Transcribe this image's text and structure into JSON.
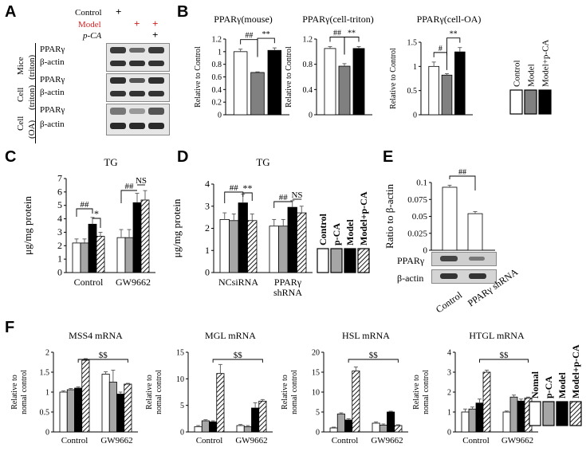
{
  "panel_labels": {
    "A": "A",
    "B": "B",
    "C": "C",
    "D": "D",
    "E": "E",
    "F": "F"
  },
  "panelA": {
    "conditions": [
      "Control",
      "Model",
      "p-CA"
    ],
    "plus_marks": {
      "control": [
        "+"
      ],
      "model": [
        "+",
        "+"
      ],
      "pca": [
        "+"
      ]
    },
    "groups": [
      {
        "group_l1": "Mice",
        "group_l2": "(triton)",
        "rows": [
          "PPARγ",
          "β-actin"
        ]
      },
      {
        "group_l1": "Cell",
        "group_l2": "(triton)",
        "rows": [
          "PPARγ",
          "β-actin"
        ]
      },
      {
        "group_l1": "Cell",
        "group_l2": "(OA)",
        "rows": [
          "PPARγ",
          "β-actin"
        ]
      }
    ]
  },
  "panelB_legend": [
    "Control",
    "Model",
    "Model+p-CA"
  ],
  "panelD_legend": [
    "Control",
    "p-CA",
    "Model",
    "Model+p-CA"
  ],
  "panelF_legend": [
    "Nomal",
    "p-CA",
    "Model",
    "Model+p-CA"
  ],
  "chart_data": [
    {
      "id": "B1",
      "type": "bar",
      "title": "PPARγ(mouse)",
      "ylabel": "Relative to Control",
      "ylim": [
        0,
        1.2
      ],
      "yticks": [
        "0",
        "0.2",
        "0.4",
        "0.6",
        "0.8",
        "1",
        "1.2"
      ],
      "categories": [
        "Control",
        "Model",
        "Model+p-CA"
      ],
      "values": [
        1.0,
        0.67,
        1.02
      ],
      "errors": [
        0.04,
        0.01,
        0.04
      ],
      "annotations": [
        "##",
        "**"
      ]
    },
    {
      "id": "B2",
      "type": "bar",
      "title": "PPARγ(cell-triton)",
      "ylabel": "Relative to Control",
      "ylim": [
        0,
        1.2
      ],
      "yticks": [
        "0",
        "0.4",
        "0.8",
        "1.2"
      ],
      "categories": [
        "Control",
        "Model",
        "Model+p-CA"
      ],
      "values": [
        1.05,
        0.77,
        1.05
      ],
      "errors": [
        0.03,
        0.04,
        0.03
      ],
      "annotations": [
        "##",
        "**"
      ]
    },
    {
      "id": "B3",
      "type": "bar",
      "title": "PPARγ(cell-OA)",
      "ylabel": "Relative to Control",
      "ylim": [
        0,
        1.5
      ],
      "yticks": [
        "0",
        "0.5",
        "1",
        "1.5"
      ],
      "categories": [
        "Control",
        "Model",
        "Model+p-CA"
      ],
      "values": [
        1.0,
        0.82,
        1.3
      ],
      "errors": [
        0.09,
        0.03,
        0.09
      ],
      "annotations": [
        "#",
        "**"
      ]
    },
    {
      "id": "C",
      "type": "bar",
      "title": "TG",
      "ylabel": "μg/mg protein",
      "ylim": [
        0,
        7
      ],
      "yticks": [
        "0",
        "1",
        "2",
        "3",
        "4",
        "5",
        "6",
        "7"
      ],
      "groups": [
        "Control",
        "GW9662"
      ],
      "series": [
        {
          "name": "Control",
          "values": [
            2.2,
            2.6
          ],
          "errors": [
            0.3,
            0.6
          ]
        },
        {
          "name": "p-CA",
          "values": [
            2.2,
            2.6
          ],
          "errors": [
            0.3,
            0.6
          ]
        },
        {
          "name": "Model",
          "values": [
            3.6,
            5.2
          ],
          "errors": [
            0.5,
            0.7
          ]
        },
        {
          "name": "Model+p-CA",
          "values": [
            2.7,
            5.4
          ],
          "errors": [
            0.3,
            0.7
          ]
        }
      ],
      "annotations": [
        "##",
        "*",
        "##",
        "NS"
      ]
    },
    {
      "id": "D",
      "type": "bar",
      "title": "TG",
      "ylabel": "μg/mg protein",
      "ylim": [
        0,
        4
      ],
      "yticks": [
        "0",
        "1",
        "2",
        "3",
        "4"
      ],
      "groups": [
        "NCsiRNA",
        "PPARγ shRNA"
      ],
      "series": [
        {
          "name": "Control",
          "values": [
            2.4,
            2.1
          ],
          "errors": [
            0.3,
            0.3
          ]
        },
        {
          "name": "p-CA",
          "values": [
            2.35,
            2.1
          ],
          "errors": [
            0.3,
            0.3
          ]
        },
        {
          "name": "Model",
          "values": [
            3.15,
            2.95
          ],
          "errors": [
            0.4,
            0.3
          ]
        },
        {
          "name": "Model+p-CA",
          "values": [
            2.35,
            2.7
          ],
          "errors": [
            0.3,
            0.3
          ]
        }
      ],
      "annotations": [
        "##",
        "**",
        "##",
        "NS"
      ]
    },
    {
      "id": "E",
      "type": "bar",
      "ylabel": "Ratio to β-actin",
      "ylim": [
        0,
        0.1
      ],
      "yticks": [
        "0",
        "0.025",
        "0.05",
        "0.075",
        "0.1"
      ],
      "categories": [
        "Control",
        "PPARγ shRNA"
      ],
      "values": [
        0.093,
        0.054
      ],
      "errors": [
        0.003,
        0.003
      ],
      "annotations": [
        "##"
      ],
      "blot_rows": [
        "PPARγ",
        "β-actin"
      ]
    },
    {
      "id": "F1",
      "type": "bar",
      "title": "MSS4 mRNA",
      "ylabel": "Relative to nomal control",
      "ylim": [
        0,
        2
      ],
      "yticks": [
        "0",
        "0.5",
        "1",
        "1.5",
        "2"
      ],
      "groups": [
        "Control",
        "GW9662"
      ],
      "series": [
        {
          "name": "Nomal",
          "values": [
            1.0,
            1.45
          ],
          "errors": [
            0.03,
            0.06
          ]
        },
        {
          "name": "p-CA",
          "values": [
            1.06,
            1.25
          ],
          "errors": [
            0.03,
            0.3
          ]
        },
        {
          "name": "Model",
          "values": [
            1.1,
            0.95
          ],
          "errors": [
            0.03,
            0.05
          ]
        },
        {
          "name": "Model+p-CA",
          "values": [
            1.8,
            1.2
          ],
          "errors": [
            0.04,
            0.02
          ]
        }
      ],
      "annotations": [
        "$$"
      ]
    },
    {
      "id": "F2",
      "type": "bar",
      "title": "MGL mRNA",
      "ylabel": "Relative to nomal control",
      "ylim": [
        0,
        15
      ],
      "yticks": [
        "0",
        "5",
        "10",
        "15"
      ],
      "groups": [
        "Control",
        "GW9662"
      ],
      "series": [
        {
          "name": "Nomal",
          "values": [
            1.0,
            1.2
          ],
          "errors": [
            0.2,
            0.2
          ]
        },
        {
          "name": "p-CA",
          "values": [
            2.1,
            1.0
          ],
          "errors": [
            0.2,
            0.2
          ]
        },
        {
          "name": "Model",
          "values": [
            1.9,
            4.5
          ],
          "errors": [
            0.2,
            1.0
          ]
        },
        {
          "name": "Model+p-CA",
          "values": [
            11.0,
            5.8
          ],
          "errors": [
            1.7,
            0.3
          ]
        }
      ],
      "annotations": [
        "$$"
      ]
    },
    {
      "id": "F3",
      "type": "bar",
      "title": "HSL mRNA",
      "ylabel": "Relative to nomal control",
      "ylim": [
        0,
        20
      ],
      "yticks": [
        "0",
        "5",
        "10",
        "15",
        "20"
      ],
      "groups": [
        "Control",
        "GW9662"
      ],
      "series": [
        {
          "name": "Nomal",
          "values": [
            1.0,
            2.2
          ],
          "errors": [
            0.2,
            0.3
          ]
        },
        {
          "name": "p-CA",
          "values": [
            4.5,
            1.7
          ],
          "errors": [
            0.3,
            0.3
          ]
        },
        {
          "name": "Model",
          "values": [
            3.0,
            5.0
          ],
          "errors": [
            0.3,
            0.2
          ]
        },
        {
          "name": "Model+p-CA",
          "values": [
            15.3,
            1.6
          ],
          "errors": [
            1.0,
            0.2
          ]
        }
      ],
      "annotations": [
        "$$"
      ]
    },
    {
      "id": "F4",
      "type": "bar",
      "title": "HTGL mRNA",
      "ylabel": "Relative to nomal control",
      "ylim": [
        0,
        4
      ],
      "yticks": [
        "0",
        "1",
        "2",
        "3",
        "4"
      ],
      "groups": [
        "Control",
        "GW9662"
      ],
      "series": [
        {
          "name": "Nomal",
          "values": [
            1.0,
            1.0
          ],
          "errors": [
            0.15,
            0.05
          ]
        },
        {
          "name": "p-CA",
          "values": [
            1.15,
            1.75
          ],
          "errors": [
            0.1,
            0.1
          ]
        },
        {
          "name": "Model",
          "values": [
            1.45,
            1.55
          ],
          "errors": [
            0.2,
            0.1
          ]
        },
        {
          "name": "Model+p-CA",
          "values": [
            3.0,
            1.7
          ],
          "errors": [
            0.1,
            0.05
          ]
        }
      ],
      "annotations": [
        "$$"
      ]
    }
  ]
}
